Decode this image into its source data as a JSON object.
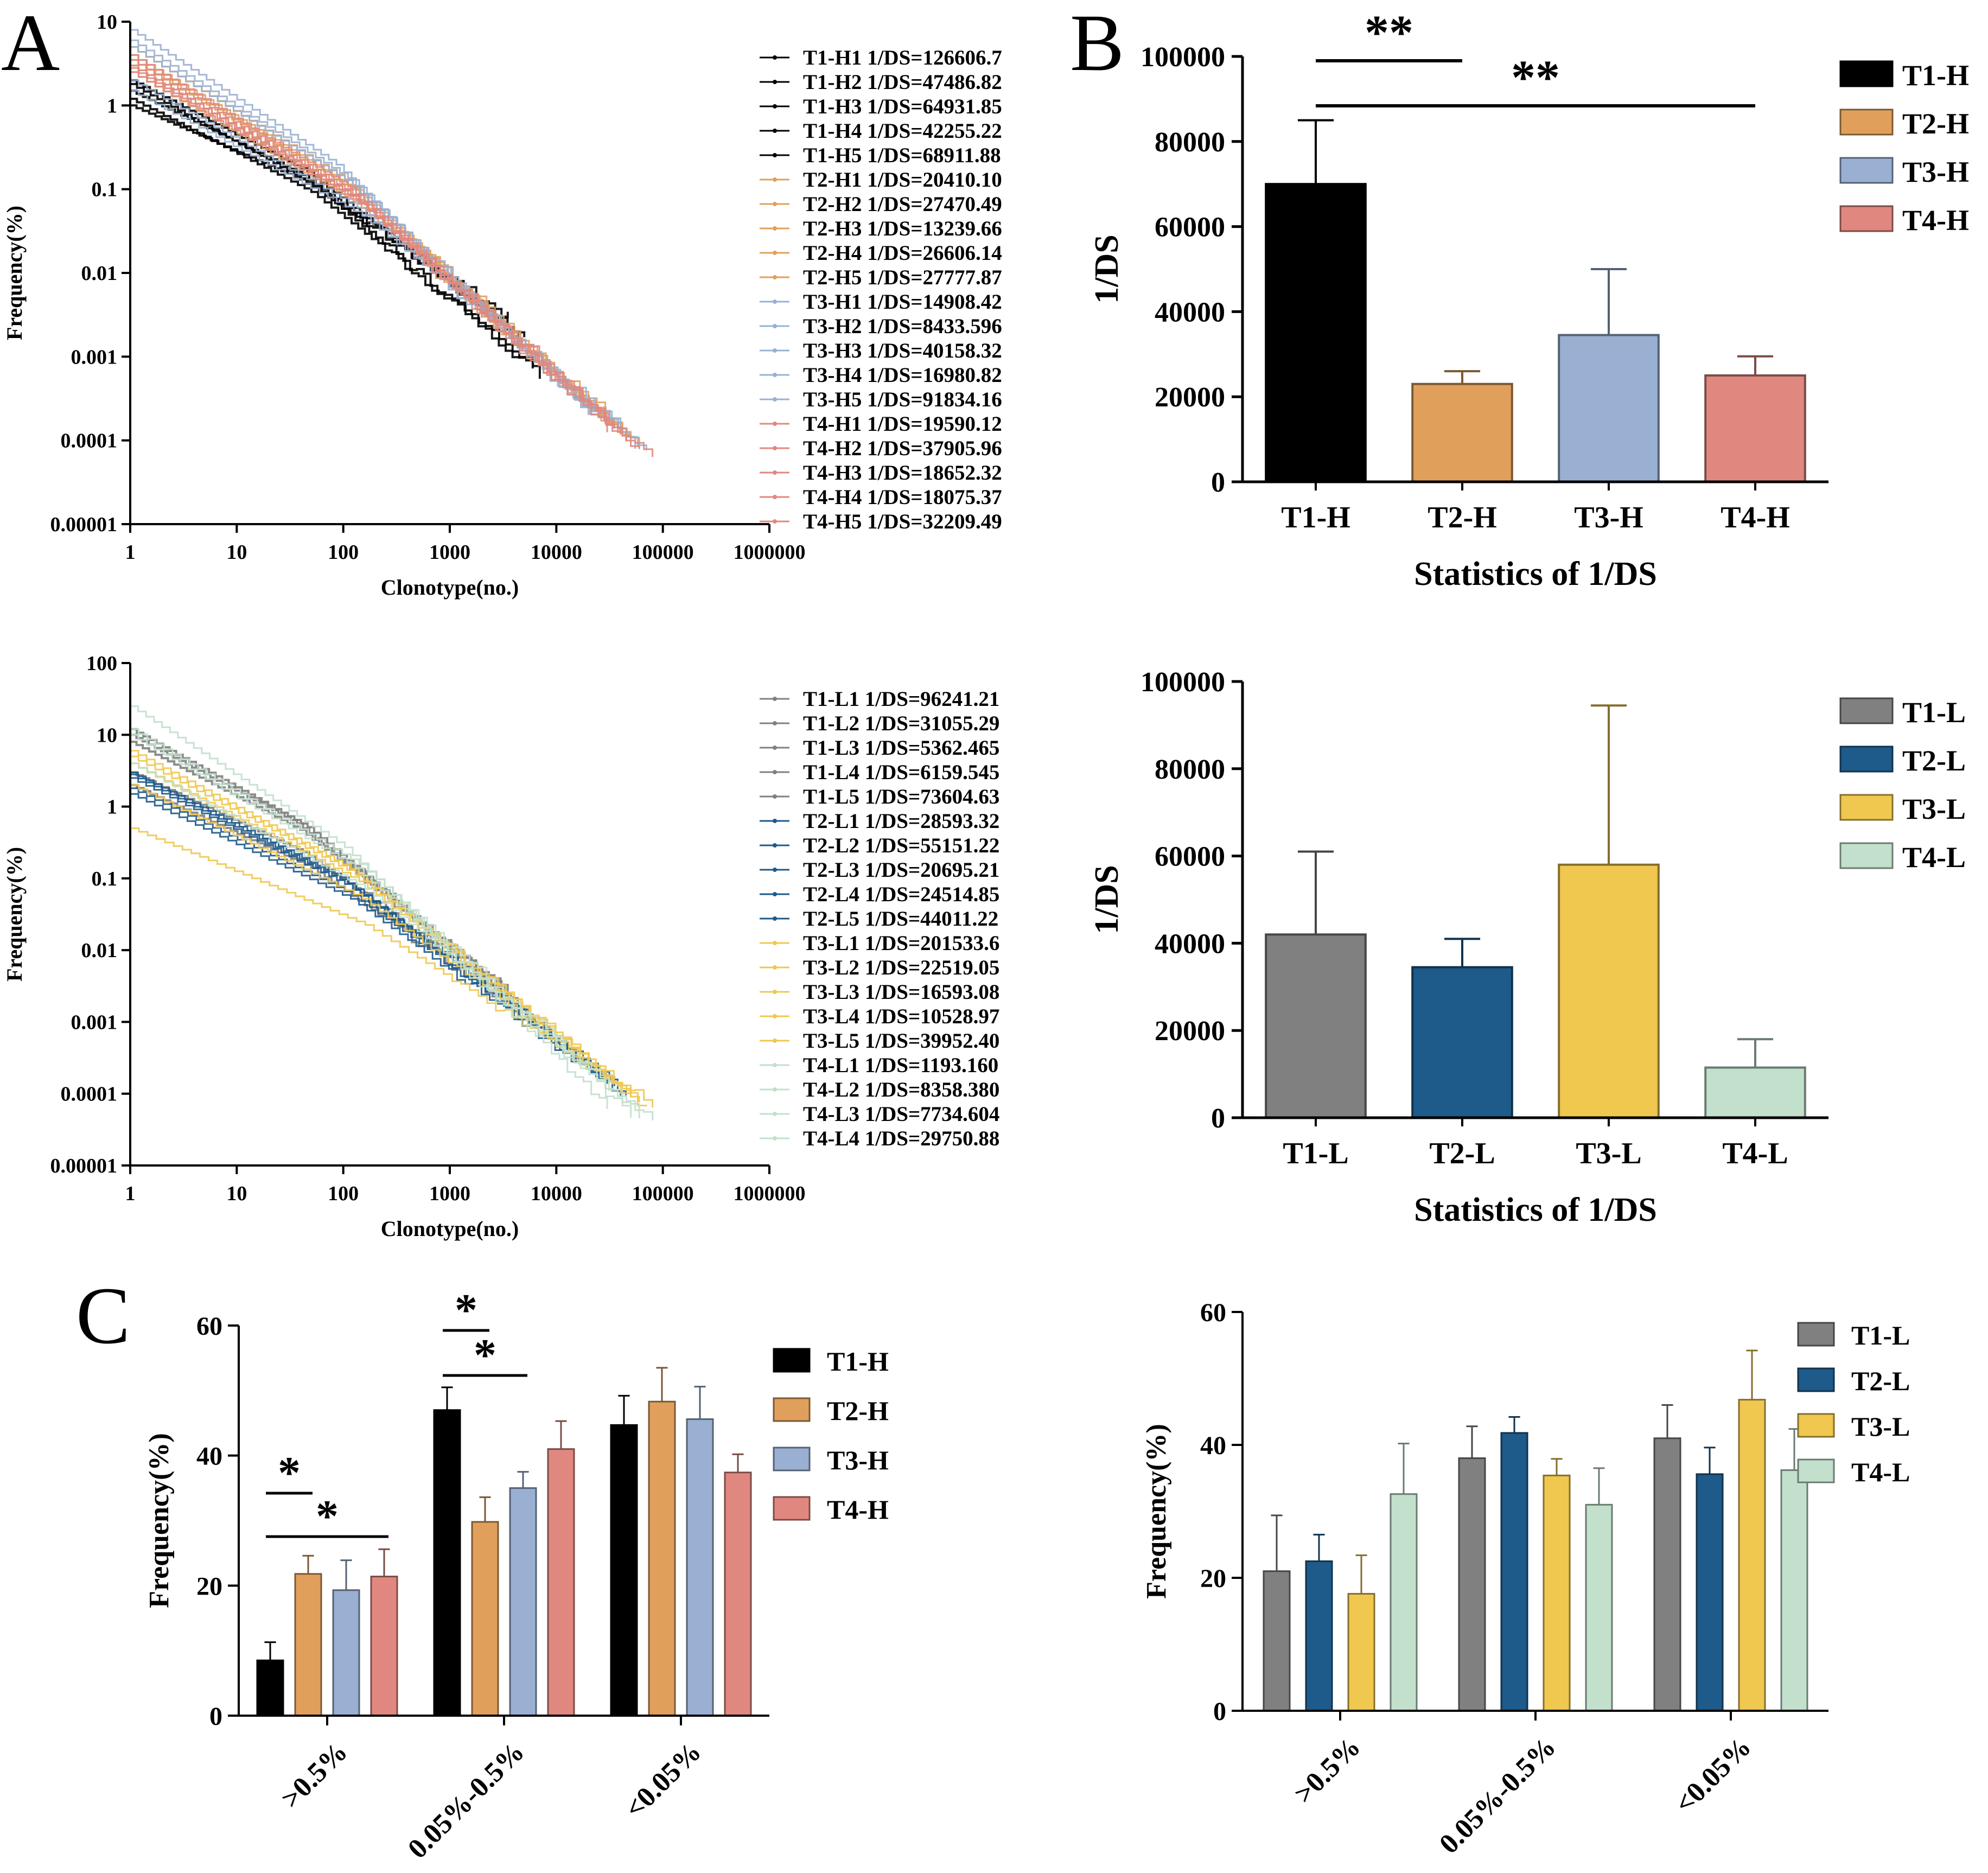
{
  "panels": {
    "A": "A",
    "B": "B",
    "C": "C"
  },
  "colors": {
    "T1-H": "#000000",
    "T2-H": "#E0A05C",
    "T3-H": "#9AB0D2",
    "T4-H": "#E08880",
    "T1-L": "#808080",
    "T2-L": "#1E5A8A",
    "T3-L": "#F0C850",
    "T4-L": "#C2E0CC"
  },
  "chart_data": [
    {
      "id": "A-top",
      "type": "line",
      "scale": "log-log",
      "xlabel": "Clonotype(no.)",
      "ylabel": "Frequency(%)",
      "xlim": [
        1,
        1000000
      ],
      "ylim": [
        1e-05,
        10
      ],
      "xticks": [
        "1",
        "10",
        "100",
        "1000",
        "10000",
        "100000",
        "1000000"
      ],
      "yticks": [
        "10",
        "1",
        "0.1",
        "0.01",
        "0.001",
        "0.0001",
        "0.00001"
      ],
      "series": [
        {
          "name": "T1-H1 1/DS=126606.7",
          "group": "T1-H",
          "y_start": 2.0,
          "x_end": 5000,
          "y_end": 0.0015
        },
        {
          "name": "T1-H2 1/DS=47486.82",
          "group": "T1-H",
          "y_start": 1.5,
          "x_end": 4000,
          "y_end": 0.002
        },
        {
          "name": "T1-H3 1/DS=64931.85",
          "group": "T1-H",
          "y_start": 1.2,
          "x_end": 6000,
          "y_end": 0.0008
        },
        {
          "name": "T1-H4 1/DS=42255.22",
          "group": "T1-H",
          "y_start": 1.0,
          "x_end": 3500,
          "y_end": 0.003
        },
        {
          "name": "T1-H5 1/DS=68911.88",
          "group": "T1-H",
          "y_start": 1.8,
          "x_end": 7000,
          "y_end": 0.0006
        },
        {
          "name": "T2-H1 1/DS=20410.10",
          "group": "T2-H",
          "y_start": 4.0,
          "x_end": 50000,
          "y_end": 0.0001
        },
        {
          "name": "T2-H2 1/DS=27470.49",
          "group": "T2-H",
          "y_start": 3.0,
          "x_end": 40000,
          "y_end": 0.00012
        },
        {
          "name": "T2-H3 1/DS=13239.66",
          "group": "T2-H",
          "y_start": 5.0,
          "x_end": 30000,
          "y_end": 0.00015
        },
        {
          "name": "T2-H4 1/DS=26606.14",
          "group": "T2-H",
          "y_start": 2.5,
          "x_end": 45000,
          "y_end": 0.0001
        },
        {
          "name": "T2-H5 1/DS=27777.87",
          "group": "T2-H",
          "y_start": 3.5,
          "x_end": 60000,
          "y_end": 9e-05
        },
        {
          "name": "T3-H1 1/DS=14908.42",
          "group": "T3-H",
          "y_start": 6.0,
          "x_end": 35000,
          "y_end": 0.00012
        },
        {
          "name": "T3-H2 1/DS=8433.596",
          "group": "T3-H",
          "y_start": 8.0,
          "x_end": 20000,
          "y_end": 0.0002
        },
        {
          "name": "T3-H3 1/DS=40158.32",
          "group": "T3-H",
          "y_start": 2.0,
          "x_end": 55000,
          "y_end": 9e-05
        },
        {
          "name": "T3-H4 1/DS=16980.82",
          "group": "T3-H",
          "y_start": 5.0,
          "x_end": 30000,
          "y_end": 0.00014
        },
        {
          "name": "T3-H5 1/DS=91834.16",
          "group": "T3-H",
          "y_start": 1.5,
          "x_end": 70000,
          "y_end": 8e-05
        },
        {
          "name": "T4-H1 1/DS=19590.12",
          "group": "T4-H",
          "y_start": 3.0,
          "x_end": 40000,
          "y_end": 0.00011
        },
        {
          "name": "T4-H2 1/DS=37905.96",
          "group": "T4-H",
          "y_start": 2.5,
          "x_end": 60000,
          "y_end": 8e-05
        },
        {
          "name": "T4-H3 1/DS=18652.32",
          "group": "T4-H",
          "y_start": 4.0,
          "x_end": 35000,
          "y_end": 0.00013
        },
        {
          "name": "T4-H4 1/DS=18075.37",
          "group": "T4-H",
          "y_start": 3.5,
          "x_end": 30000,
          "y_end": 0.00014
        },
        {
          "name": "T4-H5 1/DS=32209.49",
          "group": "T4-H",
          "y_start": 2.8,
          "x_end": 80000,
          "y_end": 6e-05
        }
      ]
    },
    {
      "id": "A-bottom",
      "type": "line",
      "scale": "log-log",
      "xlabel": "Clonotype(no.)",
      "ylabel": "Frequency(%)",
      "xlim": [
        1,
        1000000
      ],
      "ylim": [
        1e-05,
        100
      ],
      "xticks": [
        "1",
        "10",
        "100",
        "1000",
        "10000",
        "100000",
        "1000000"
      ],
      "yticks": [
        "100",
        "10",
        "1",
        "0.1",
        "0.01",
        "0.001",
        "0.0001",
        "0.00001"
      ],
      "series": [
        {
          "name": "T1-L1 1/DS=96241.21",
          "group": "T1-L",
          "y_start": 3.0,
          "x_end": 4000,
          "y_end": 0.002
        },
        {
          "name": "T1-L2 1/DS=31055.29",
          "group": "T1-L",
          "y_start": 10.0,
          "x_end": 3000,
          "y_end": 0.003
        },
        {
          "name": "T1-L3 1/DS=5362.465",
          "group": "T1-L",
          "y_start": 12.0,
          "x_end": 5000,
          "y_end": 0.0015
        },
        {
          "name": "T1-L4 1/DS=6159.545",
          "group": "T1-L",
          "y_start": 8.0,
          "x_end": 3500,
          "y_end": 0.0025
        },
        {
          "name": "T1-L5 1/DS=73604.63",
          "group": "T1-L",
          "y_start": 2.0,
          "x_end": 6000,
          "y_end": 0.001
        },
        {
          "name": "T2-L1 1/DS=28593.32",
          "group": "T2-L",
          "y_start": 2.5,
          "x_end": 30000,
          "y_end": 0.00015
        },
        {
          "name": "T2-L2 1/DS=55151.22",
          "group": "T2-L",
          "y_start": 1.5,
          "x_end": 40000,
          "y_end": 0.0001
        },
        {
          "name": "T2-L3 1/DS=20695.21",
          "group": "T2-L",
          "y_start": 3.0,
          "x_end": 25000,
          "y_end": 0.0002
        },
        {
          "name": "T2-L4 1/DS=24514.85",
          "group": "T2-L",
          "y_start": 2.8,
          "x_end": 35000,
          "y_end": 0.00013
        },
        {
          "name": "T2-L5 1/DS=44011.22",
          "group": "T2-L",
          "y_start": 1.8,
          "x_end": 45000,
          "y_end": 0.0001
        },
        {
          "name": "T3-L1 1/DS=201533.6",
          "group": "T3-L",
          "y_start": 0.5,
          "x_end": 80000,
          "y_end": 7e-05
        },
        {
          "name": "T3-L2 1/DS=22519.05",
          "group": "T3-L",
          "y_start": 4.0,
          "x_end": 60000,
          "y_end": 8e-05
        },
        {
          "name": "T3-L3 1/DS=16593.08",
          "group": "T3-L",
          "y_start": 5.0,
          "x_end": 50000,
          "y_end": 0.0001
        },
        {
          "name": "T3-L4 1/DS=10528.97",
          "group": "T3-L",
          "y_start": 6.0,
          "x_end": 40000,
          "y_end": 0.00012
        },
        {
          "name": "T3-L5 1/DS=39952.40",
          "group": "T3-L",
          "y_start": 2.0,
          "x_end": 70000,
          "y_end": 6e-05
        },
        {
          "name": "T4-L1 1/DS=1193.160",
          "group": "T4-L",
          "y_start": 25.0,
          "x_end": 30000,
          "y_end": 6e-05
        },
        {
          "name": "T4-L2 1/DS=8358.380",
          "group": "T4-L",
          "y_start": 10.0,
          "x_end": 50000,
          "y_end": 5e-05
        },
        {
          "name": "T4-L3 1/DS=7734.604",
          "group": "T4-L",
          "y_start": 12.0,
          "x_end": 60000,
          "y_end": 5e-05
        },
        {
          "name": "T4-L4 1/DS=29750.88",
          "group": "T4-L",
          "y_start": 4.0,
          "x_end": 80000,
          "y_end": 4e-05
        }
      ]
    },
    {
      "id": "B-top",
      "type": "bar",
      "title": "",
      "xlabel": "Statistics of 1/DS",
      "ylabel": "1/DS",
      "ylim": [
        0,
        100000
      ],
      "yticks": [
        "0",
        "20000",
        "40000",
        "60000",
        "80000",
        "100000"
      ],
      "categories": [
        "T1-H",
        "T2-H",
        "T3-H",
        "T4-H"
      ],
      "values": [
        70000,
        23000,
        34500,
        25000
      ],
      "errors": [
        15000,
        3000,
        15500,
        4500
      ],
      "legend": [
        "T1-H",
        "T2-H",
        "T3-H",
        "T4-H"
      ],
      "significance": [
        {
          "from": "T1-H",
          "to": "T2-H",
          "label": "**"
        },
        {
          "from": "T1-H",
          "to": "T4-H",
          "label": "**"
        }
      ]
    },
    {
      "id": "B-bottom",
      "type": "bar",
      "xlabel": "Statistics of 1/DS",
      "ylabel": "1/DS",
      "ylim": [
        0,
        100000
      ],
      "yticks": [
        "0",
        "20000",
        "40000",
        "60000",
        "80000",
        "100000"
      ],
      "categories": [
        "T1-L",
        "T2-L",
        "T3-L",
        "T4-L"
      ],
      "values": [
        42000,
        34500,
        58000,
        11500
      ],
      "errors": [
        19000,
        6500,
        36500,
        6500
      ],
      "legend": [
        "T1-L",
        "T2-L",
        "T3-L",
        "T4-L"
      ]
    },
    {
      "id": "C-left",
      "type": "bar",
      "ylabel": "Frequency(%)",
      "ylim": [
        0,
        60
      ],
      "yticks": [
        "0",
        "20",
        "40",
        "60"
      ],
      "categories": [
        ">0.5%",
        "0.05%-0.5%",
        "<0.05%"
      ],
      "series": [
        {
          "name": "T1-H",
          "values": [
            8.5,
            47,
            44.7
          ],
          "errors": [
            2.8,
            3.5,
            4.5
          ]
        },
        {
          "name": "T2-H",
          "values": [
            21.8,
            29.8,
            48.3
          ],
          "errors": [
            2.8,
            3.8,
            5.2
          ]
        },
        {
          "name": "T3-H",
          "values": [
            19.3,
            35,
            45.6
          ],
          "errors": [
            4.6,
            2.5,
            5
          ]
        },
        {
          "name": "T4-H",
          "values": [
            21.4,
            41,
            37.4
          ],
          "errors": [
            4.2,
            4.3,
            2.8
          ]
        }
      ],
      "significance": [
        {
          "category": ">0.5%",
          "from": "T1-H",
          "to": "T2-H",
          "label": "*"
        },
        {
          "category": ">0.5%",
          "from": "T1-H",
          "to": "T4-H",
          "label": "*"
        },
        {
          "category": "0.05%-0.5%",
          "from": "T1-H",
          "to": "T2-H",
          "label": "*"
        },
        {
          "category": "0.05%-0.5%",
          "from": "T1-H",
          "to": "T3-H",
          "label": "*"
        }
      ]
    },
    {
      "id": "C-right",
      "type": "bar",
      "ylabel": "Frequency(%)",
      "ylim": [
        0,
        60
      ],
      "yticks": [
        "0",
        "20",
        "40",
        "60"
      ],
      "categories": [
        ">0.5%",
        "0.05%-0.5%",
        "<0.05%"
      ],
      "series": [
        {
          "name": "T1-L",
          "values": [
            21,
            38,
            41
          ],
          "errors": [
            8.4,
            4.8,
            5
          ]
        },
        {
          "name": "T2-L",
          "values": [
            22.5,
            41.8,
            35.6
          ],
          "errors": [
            4,
            2.4,
            4
          ]
        },
        {
          "name": "T3-L",
          "values": [
            17.6,
            35.4,
            46.8
          ],
          "errors": [
            5.8,
            2.5,
            7.4
          ]
        },
        {
          "name": "T4-L",
          "values": [
            32.6,
            31,
            36.2
          ],
          "errors": [
            7.6,
            5.5,
            6.2
          ]
        }
      ]
    }
  ]
}
